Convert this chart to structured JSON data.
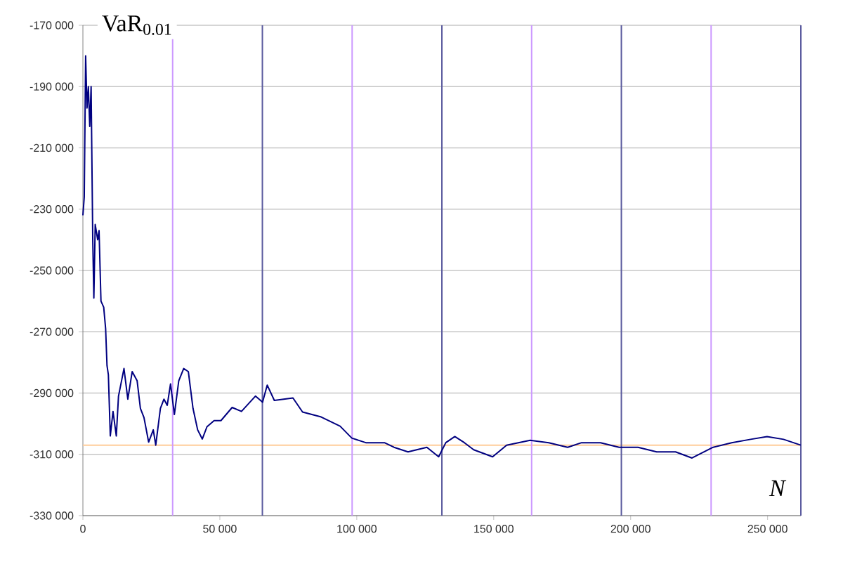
{
  "chart_data": {
    "type": "line",
    "ylabel": "VaR$_{0.01}$",
    "xlabel": "N",
    "x": [
      0,
      500,
      1000,
      1500,
      2000,
      2500,
      3000,
      3600,
      4000,
      4500,
      5400,
      5900,
      6600,
      7600,
      8300,
      8800,
      9300,
      10000,
      11000,
      12200,
      13000,
      15000,
      16400,
      18000,
      19800,
      21000,
      22300,
      24000,
      25700,
      26600,
      28300,
      29600,
      30800,
      32000,
      33400,
      35000,
      36800,
      38500,
      40200,
      41900,
      43600,
      45300,
      47900,
      50400,
      54500,
      57900,
      63000,
      65600,
      67300,
      69900,
      76700,
      80200,
      87000,
      93900,
      98200,
      103300,
      110100,
      113600,
      118700,
      125600,
      129900,
      132500,
      135800,
      139300,
      142700,
      149600,
      154700,
      163300,
      170100,
      177000,
      182100,
      189000,
      195800,
      202700,
      209500,
      216400,
      222400,
      230100,
      236900,
      243800,
      249800,
      255800,
      262100
    ],
    "series": [
      {
        "color": "#000080",
        "values": [
          -232000,
          -226000,
          -180000,
          -197000,
          -190000,
          -203000,
          -190000,
          -240000,
          -259000,
          -235000,
          -240000,
          -237000,
          -260000,
          -262000,
          -269000,
          -281000,
          -284000,
          -304000,
          -296000,
          -304000,
          -291000,
          -282000,
          -292000,
          -283000,
          -286000,
          -295000,
          -298000,
          -306000,
          -302000,
          -307000,
          -295000,
          -292000,
          -294000,
          -287000,
          -297000,
          -286000,
          -282000,
          -283000,
          -295000,
          -302000,
          -305000,
          -301000,
          -299000,
          -299000,
          -294700,
          -296000,
          -291000,
          -293000,
          -287400,
          -292400,
          -291600,
          -296200,
          -297800,
          -300800,
          -304700,
          -306200,
          -306200,
          -307700,
          -309200,
          -307700,
          -310800,
          -306200,
          -304200,
          -306200,
          -308500,
          -310800,
          -307000,
          -305400,
          -306200,
          -307700,
          -306200,
          -306200,
          -307700,
          -307700,
          -309200,
          -309200,
          -311200,
          -307700,
          -306200,
          -305100,
          -304200,
          -305100,
          -307000
        ]
      }
    ],
    "xlim": [
      0,
      262144
    ],
    "ylim": [
      -330000,
      -170000
    ],
    "xticks": [
      0,
      {
        "value": 50000,
        "label": "50 000"
      },
      {
        "value": 100000,
        "label": "100 000"
      },
      {
        "value": 150000,
        "label": "150 000"
      },
      {
        "value": 200000,
        "label": "200 000"
      },
      {
        "value": 250000,
        "label": "250 000"
      }
    ],
    "yticks": [
      {
        "value": -330000,
        "label": "-330 000"
      },
      {
        "value": -310000,
        "label": "-310 000"
      },
      {
        "value": -290000,
        "label": "-290 000"
      },
      {
        "value": -270000,
        "label": "-270 000"
      },
      {
        "value": -250000,
        "label": "-250 000"
      },
      {
        "value": -230000,
        "label": "-230 000"
      },
      {
        "value": -210000,
        "label": "-210 000"
      },
      {
        "value": -190000,
        "label": "-190 000"
      },
      {
        "value": -170000,
        "label": "-170 000"
      }
    ],
    "grid": "y",
    "ref_lines": [
      {
        "axis": "y",
        "value": -307000,
        "color": "#ffcc99"
      },
      {
        "axis": "x",
        "value": 32768,
        "color": "#cc99ff"
      },
      {
        "axis": "x",
        "value": 65536,
        "color": "#5a5a9e"
      },
      {
        "axis": "x",
        "value": 98304,
        "color": "#cc99ff"
      },
      {
        "axis": "x",
        "value": 131072,
        "color": "#5a5a9e"
      },
      {
        "axis": "x",
        "value": 163840,
        "color": "#cc99ff"
      },
      {
        "axis": "x",
        "value": 196608,
        "color": "#5a5a9e"
      },
      {
        "axis": "x",
        "value": 229376,
        "color": "#cc99ff"
      },
      {
        "axis": "x",
        "value": 262144,
        "color": "#5a5a9e"
      }
    ]
  }
}
